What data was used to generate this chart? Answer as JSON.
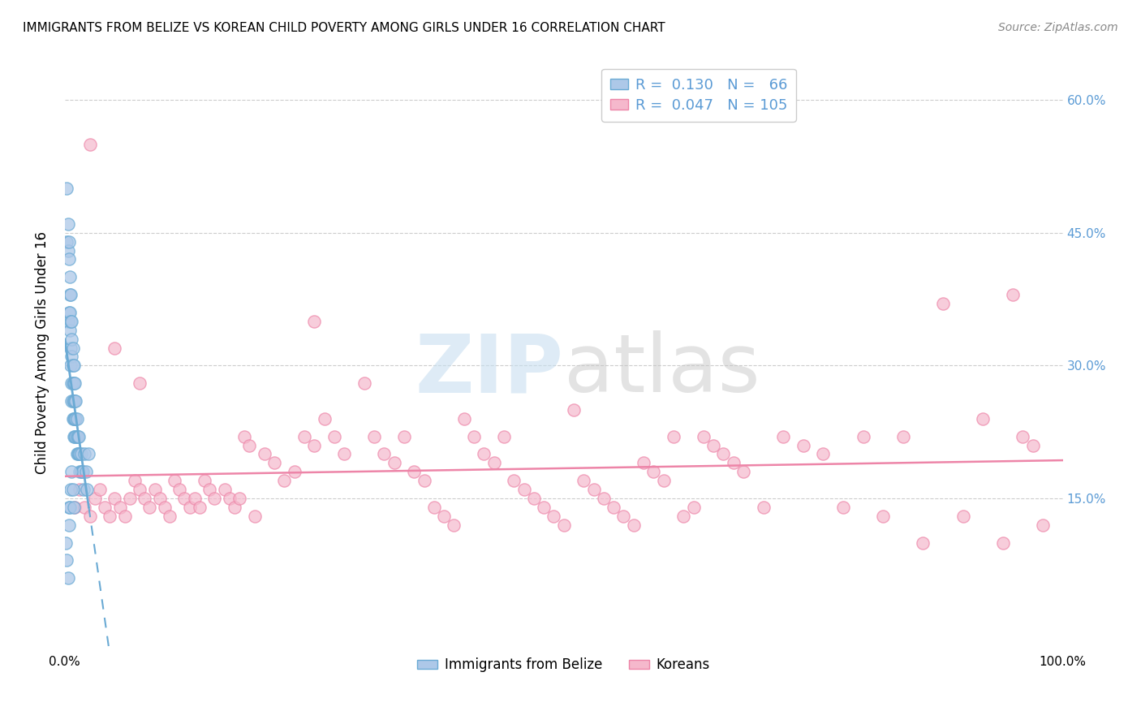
{
  "title": "IMMIGRANTS FROM BELIZE VS KOREAN CHILD POVERTY AMONG GIRLS UNDER 16 CORRELATION CHART",
  "source": "Source: ZipAtlas.com",
  "ylabel": "Child Poverty Among Girls Under 16",
  "ytick_values": [
    0.15,
    0.3,
    0.45,
    0.6
  ],
  "ytick_labels": [
    "15.0%",
    "30.0%",
    "45.0%",
    "60.0%"
  ],
  "xlim": [
    0.0,
    1.0
  ],
  "ylim": [
    -0.02,
    0.65
  ],
  "color_blue_fill": "#adc8e8",
  "color_blue_edge": "#6aaad4",
  "color_pink_fill": "#f5b8cc",
  "color_pink_edge": "#ed85a8",
  "color_blue_text": "#5b9bd5",
  "color_pink_text": "#ed7aaa",
  "trendline_blue": "#6aaad4",
  "trendline_pink": "#ed85a8",
  "watermark_color": "#daeef8",
  "legend_r1_text": "R =  0.130   N =   66",
  "legend_r2_text": "R =  0.047   N = 105",
  "belize_x": [
    0.002,
    0.002,
    0.003,
    0.003,
    0.003,
    0.004,
    0.004,
    0.004,
    0.005,
    0.005,
    0.005,
    0.005,
    0.006,
    0.006,
    0.006,
    0.006,
    0.007,
    0.007,
    0.007,
    0.007,
    0.007,
    0.008,
    0.008,
    0.008,
    0.008,
    0.008,
    0.009,
    0.009,
    0.009,
    0.009,
    0.009,
    0.01,
    0.01,
    0.01,
    0.01,
    0.011,
    0.011,
    0.011,
    0.012,
    0.012,
    0.012,
    0.013,
    0.013,
    0.014,
    0.014,
    0.015,
    0.015,
    0.016,
    0.016,
    0.017,
    0.018,
    0.019,
    0.02,
    0.021,
    0.022,
    0.024,
    0.001,
    0.002,
    0.003,
    0.004,
    0.004,
    0.005,
    0.006,
    0.007,
    0.008,
    0.009
  ],
  "belize_y": [
    0.5,
    0.44,
    0.46,
    0.43,
    0.35,
    0.44,
    0.42,
    0.36,
    0.4,
    0.38,
    0.36,
    0.34,
    0.38,
    0.35,
    0.32,
    0.3,
    0.35,
    0.33,
    0.31,
    0.28,
    0.26,
    0.32,
    0.3,
    0.28,
    0.26,
    0.24,
    0.3,
    0.28,
    0.26,
    0.24,
    0.22,
    0.28,
    0.26,
    0.24,
    0.22,
    0.26,
    0.24,
    0.22,
    0.24,
    0.22,
    0.2,
    0.22,
    0.2,
    0.22,
    0.2,
    0.2,
    0.18,
    0.2,
    0.18,
    0.18,
    0.18,
    0.16,
    0.2,
    0.18,
    0.16,
    0.2,
    0.1,
    0.08,
    0.06,
    0.14,
    0.12,
    0.14,
    0.16,
    0.18,
    0.16,
    0.14
  ],
  "korean_x": [
    0.01,
    0.015,
    0.02,
    0.025,
    0.03,
    0.035,
    0.04,
    0.045,
    0.05,
    0.055,
    0.06,
    0.065,
    0.07,
    0.075,
    0.08,
    0.085,
    0.09,
    0.095,
    0.1,
    0.105,
    0.11,
    0.115,
    0.12,
    0.125,
    0.13,
    0.135,
    0.14,
    0.145,
    0.15,
    0.16,
    0.165,
    0.17,
    0.175,
    0.18,
    0.185,
    0.19,
    0.2,
    0.21,
    0.22,
    0.23,
    0.24,
    0.25,
    0.26,
    0.27,
    0.28,
    0.3,
    0.31,
    0.32,
    0.33,
    0.34,
    0.35,
    0.36,
    0.37,
    0.38,
    0.39,
    0.4,
    0.41,
    0.42,
    0.43,
    0.44,
    0.45,
    0.46,
    0.47,
    0.48,
    0.49,
    0.5,
    0.51,
    0.52,
    0.53,
    0.54,
    0.55,
    0.56,
    0.57,
    0.58,
    0.59,
    0.6,
    0.61,
    0.62,
    0.63,
    0.64,
    0.65,
    0.66,
    0.67,
    0.68,
    0.7,
    0.72,
    0.74,
    0.76,
    0.78,
    0.8,
    0.82,
    0.84,
    0.86,
    0.88,
    0.9,
    0.92,
    0.94,
    0.96,
    0.97,
    0.98,
    0.025,
    0.05,
    0.075,
    0.25,
    0.95
  ],
  "korean_y": [
    0.14,
    0.16,
    0.14,
    0.13,
    0.15,
    0.16,
    0.14,
    0.13,
    0.15,
    0.14,
    0.13,
    0.15,
    0.17,
    0.16,
    0.15,
    0.14,
    0.16,
    0.15,
    0.14,
    0.13,
    0.17,
    0.16,
    0.15,
    0.14,
    0.15,
    0.14,
    0.17,
    0.16,
    0.15,
    0.16,
    0.15,
    0.14,
    0.15,
    0.22,
    0.21,
    0.13,
    0.2,
    0.19,
    0.17,
    0.18,
    0.22,
    0.21,
    0.24,
    0.22,
    0.2,
    0.28,
    0.22,
    0.2,
    0.19,
    0.22,
    0.18,
    0.17,
    0.14,
    0.13,
    0.12,
    0.24,
    0.22,
    0.2,
    0.19,
    0.22,
    0.17,
    0.16,
    0.15,
    0.14,
    0.13,
    0.12,
    0.25,
    0.17,
    0.16,
    0.15,
    0.14,
    0.13,
    0.12,
    0.19,
    0.18,
    0.17,
    0.22,
    0.13,
    0.14,
    0.22,
    0.21,
    0.2,
    0.19,
    0.18,
    0.14,
    0.22,
    0.21,
    0.2,
    0.14,
    0.22,
    0.13,
    0.22,
    0.1,
    0.37,
    0.13,
    0.24,
    0.1,
    0.22,
    0.21,
    0.12,
    0.55,
    0.32,
    0.28,
    0.35,
    0.38
  ]
}
